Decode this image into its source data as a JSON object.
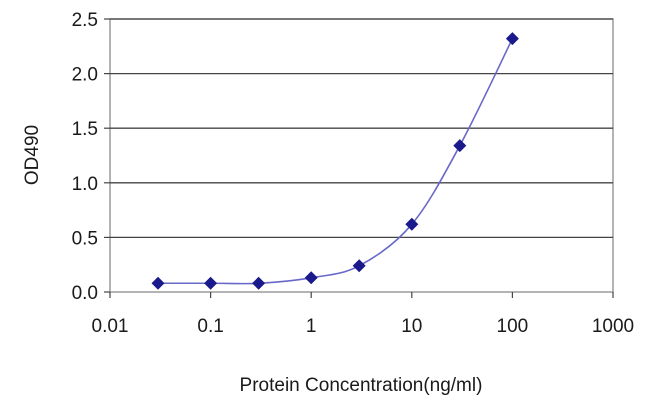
{
  "chart_data": {
    "type": "scatter",
    "title": "",
    "xlabel": "Protein Concentration(ng/ml)",
    "ylabel": "OD490",
    "x_scale": "log",
    "xlim": [
      0.01,
      1000
    ],
    "ylim": [
      0,
      2.5
    ],
    "x_ticks": [
      "0.01",
      "0.1",
      "1",
      "10",
      "100",
      "1000"
    ],
    "y_ticks": [
      "0.0",
      "0.5",
      "1.0",
      "1.5",
      "2.0",
      "2.5"
    ],
    "grid": "horizontal",
    "legend": "none",
    "marker_color": "#1a1a8c",
    "line_color": "#6868c8",
    "series": [
      {
        "x": [
          0.03,
          0.1,
          0.3,
          1,
          3,
          10,
          30,
          100
        ],
        "y": [
          0.08,
          0.08,
          0.08,
          0.13,
          0.24,
          0.62,
          1.34,
          2.32
        ]
      }
    ]
  }
}
